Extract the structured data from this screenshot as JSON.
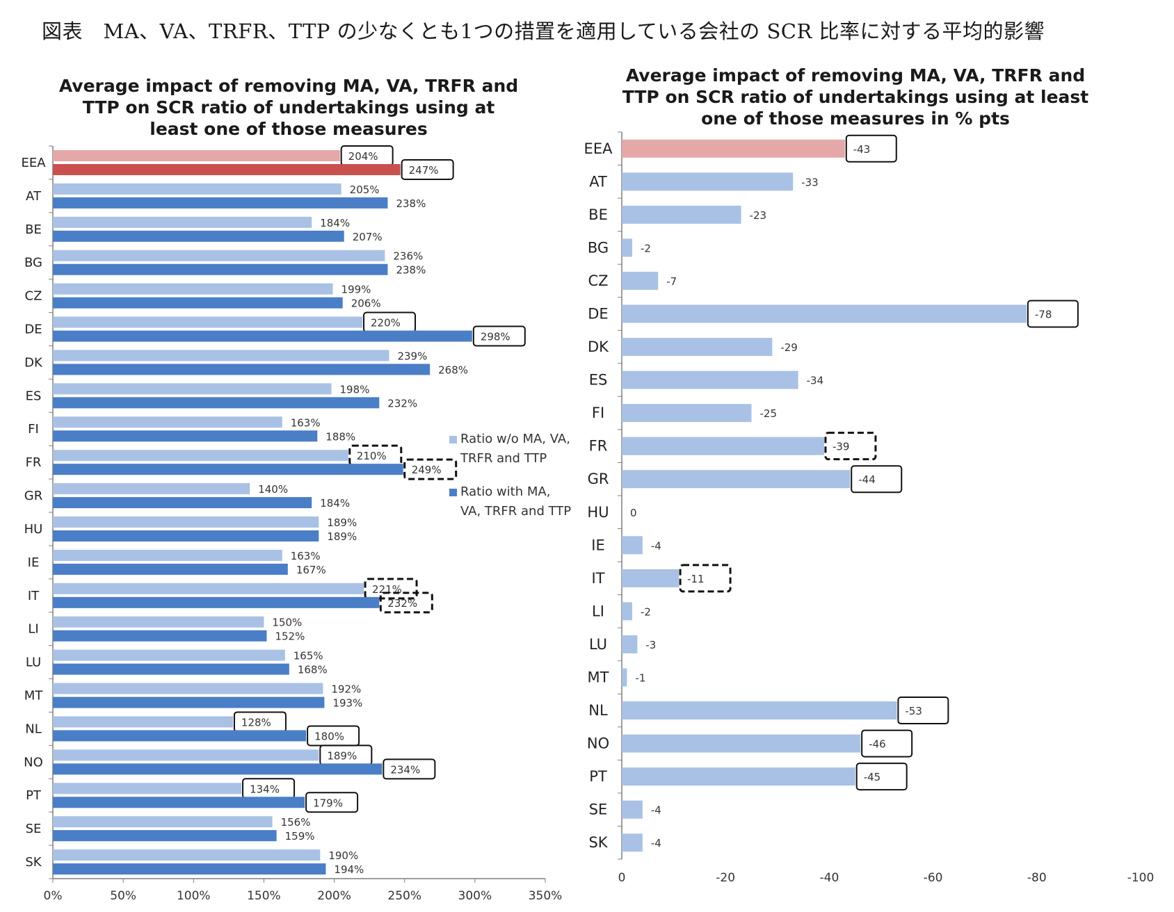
{
  "page_title": "図表　MA、VA、TRFR、TTP の少なくとも1つの措置を適用している会社の SCR 比率に対する平均的影響",
  "colors": {
    "light_blue": "#a9c1e4",
    "dark_blue": "#4a7ec6",
    "light_red": "#e5a8a8",
    "dark_red": "#c9504d",
    "axis": "#7f7f7f"
  },
  "legend": {
    "without": "Ratio w/o MA, VA, TRFR and TTP",
    "with": "Ratio with MA, VA, TRFR and TTP"
  },
  "chart_data": [
    {
      "type": "bar",
      "orientation": "horizontal",
      "title": "Average impact of removing MA, VA, TRFR and TTP on SCR ratio of undertakings using at least one of those measures",
      "categories": [
        "EEA",
        "AT",
        "BE",
        "BG",
        "CZ",
        "DE",
        "DK",
        "ES",
        "FI",
        "FR",
        "GR",
        "HU",
        "IE",
        "IT",
        "LI",
        "LU",
        "MT",
        "NL",
        "NO",
        "PT",
        "SE",
        "SK"
      ],
      "series": [
        {
          "name": "Ratio w/o MA, VA, TRFR and TTP",
          "values": [
            204,
            205,
            184,
            236,
            199,
            220,
            239,
            198,
            163,
            210,
            140,
            189,
            163,
            221,
            150,
            165,
            192,
            128,
            189,
            134,
            156,
            190
          ],
          "labels": [
            "204%",
            "205%",
            "184%",
            "236%",
            "199%",
            "220%",
            "239%",
            "198%",
            "163%",
            "210%",
            "140%",
            "189%",
            "163%",
            "221%",
            "150%",
            "165%",
            "192%",
            "128%",
            "189%",
            "134%",
            "156%",
            "190%"
          ]
        },
        {
          "name": "Ratio with MA, VA, TRFR and TTP",
          "values": [
            247,
            238,
            207,
            238,
            206,
            298,
            268,
            232,
            188,
            249,
            184,
            189,
            167,
            232,
            152,
            168,
            193,
            180,
            234,
            179,
            159,
            194
          ],
          "labels": [
            "247%",
            "238%",
            "207%",
            "238%",
            "206%",
            "298%",
            "268%",
            "232%",
            "188%",
            "249%",
            "184%",
            "189%",
            "167%",
            "232%",
            "152%",
            "168%",
            "193%",
            "180%",
            "234%",
            "179%",
            "159%",
            "194%"
          ]
        }
      ],
      "xlim": [
        0,
        350
      ],
      "xticks": [
        "0%",
        "50%",
        "100%",
        "150%",
        "200%",
        "250%",
        "300%",
        "350%"
      ],
      "legend_position": "right",
      "annotations": {
        "solid_boxes": [
          [
            0,
            0
          ],
          [
            0,
            1
          ],
          [
            5,
            0
          ],
          [
            5,
            1
          ],
          [
            17,
            0
          ],
          [
            17,
            1
          ],
          [
            18,
            0
          ],
          [
            18,
            1
          ],
          [
            19,
            0
          ],
          [
            19,
            1
          ]
        ],
        "dashed_boxes": [
          [
            9,
            0
          ],
          [
            9,
            1
          ],
          [
            13,
            0
          ],
          [
            13,
            1
          ]
        ]
      }
    },
    {
      "type": "bar",
      "orientation": "horizontal",
      "title": "Average impact of removing MA, VA, TRFR and TTP on SCR ratio of undertakings using at least one of those measures in % pts",
      "categories": [
        "EEA",
        "AT",
        "BE",
        "BG",
        "CZ",
        "DE",
        "DK",
        "ES",
        "FI",
        "FR",
        "GR",
        "HU",
        "IE",
        "IT",
        "LI",
        "LU",
        "MT",
        "NL",
        "NO",
        "PT",
        "SE",
        "SK"
      ],
      "series": [
        {
          "values": [
            -43,
            -33,
            -23,
            -2,
            -7,
            -78,
            -29,
            -34,
            -25,
            -39,
            -44,
            0,
            -4,
            -11,
            -2,
            -3,
            -1,
            -53,
            -46,
            -45,
            -4,
            -4
          ],
          "labels": [
            "-43",
            "-33",
            "-23",
            "-2",
            "-7",
            "-78",
            "-29",
            "-34",
            "-25",
            "-39",
            "-44",
            "0",
            "-4",
            "-11",
            "-2",
            "-3",
            "-1",
            "-53",
            "-46",
            "-45",
            "-4",
            "-4"
          ]
        }
      ],
      "xlim": [
        0,
        -100
      ],
      "xticks": [
        "0",
        "-20",
        "-40",
        "-60",
        "-80",
        "-100"
      ],
      "annotations": {
        "solid_boxes": [
          0,
          5,
          10,
          17,
          18,
          19
        ],
        "dashed_boxes": [
          9,
          13
        ]
      }
    }
  ]
}
